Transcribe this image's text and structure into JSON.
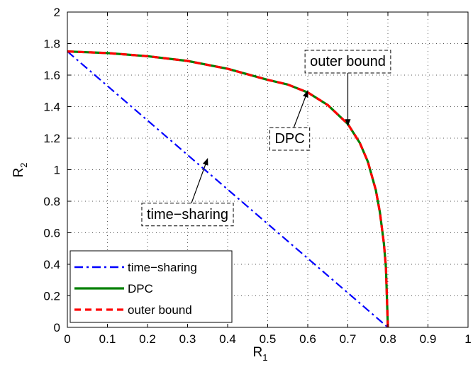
{
  "chart_data": {
    "type": "line",
    "xlabel": "R",
    "xlabel_sub": "1",
    "ylabel": "R",
    "ylabel_sub": "2",
    "xlim": [
      0,
      1
    ],
    "ylim": [
      0,
      2
    ],
    "xticks": [
      0,
      0.1,
      0.2,
      0.3,
      0.4,
      0.5,
      0.6,
      0.7,
      0.8,
      0.9,
      1
    ],
    "xtick_labels": [
      "0",
      "0.1",
      "0.2",
      "0.3",
      "0.4",
      "0.5",
      "0.6",
      "0.7",
      "0.8",
      "0.9",
      "1"
    ],
    "yticks": [
      0,
      0.2,
      0.4,
      0.6,
      0.8,
      1,
      1.2,
      1.4,
      1.6,
      1.8,
      2
    ],
    "ytick_labels": [
      "0",
      "0.2",
      "0.4",
      "0.6",
      "0.8",
      "1",
      "1.2",
      "1.4",
      "1.6",
      "1.8",
      "2"
    ],
    "grid": true,
    "legend_position": "bottom-left",
    "series": [
      {
        "name": "time−sharing",
        "color": "#0000ff",
        "style": "dash-dot",
        "x": [
          0,
          0.8
        ],
        "y": [
          1.75,
          0
        ]
      },
      {
        "name": "DPC",
        "color": "#008000",
        "style": "solid",
        "x": [
          0,
          0.1,
          0.2,
          0.3,
          0.4,
          0.5,
          0.55,
          0.6,
          0.65,
          0.7,
          0.73,
          0.75,
          0.77,
          0.78,
          0.79,
          0.795,
          0.8
        ],
        "y": [
          1.75,
          1.74,
          1.72,
          1.69,
          1.64,
          1.57,
          1.54,
          1.49,
          1.41,
          1.29,
          1.17,
          1.05,
          0.87,
          0.73,
          0.53,
          0.38,
          0
        ]
      },
      {
        "name": "outer bound",
        "color": "#ff0000",
        "style": "dashed",
        "x": [
          0,
          0.1,
          0.2,
          0.3,
          0.4,
          0.5,
          0.55,
          0.6,
          0.65,
          0.7,
          0.73,
          0.75,
          0.77,
          0.78,
          0.79,
          0.795,
          0.8
        ],
        "y": [
          1.75,
          1.74,
          1.72,
          1.69,
          1.64,
          1.57,
          1.54,
          1.49,
          1.41,
          1.29,
          1.17,
          1.05,
          0.87,
          0.73,
          0.53,
          0.38,
          0
        ]
      }
    ],
    "annotations": [
      {
        "text": "outer bound",
        "box_at": [
          0.7,
          1.69
        ],
        "arrow_to": [
          0.7,
          1.28
        ]
      },
      {
        "text": "DPC",
        "box_at": [
          0.555,
          1.2
        ],
        "arrow_to": [
          0.6,
          1.5
        ]
      },
      {
        "text": "time−sharing",
        "box_at": [
          0.3,
          0.72
        ],
        "arrow_to": [
          0.35,
          1.07
        ]
      }
    ]
  }
}
